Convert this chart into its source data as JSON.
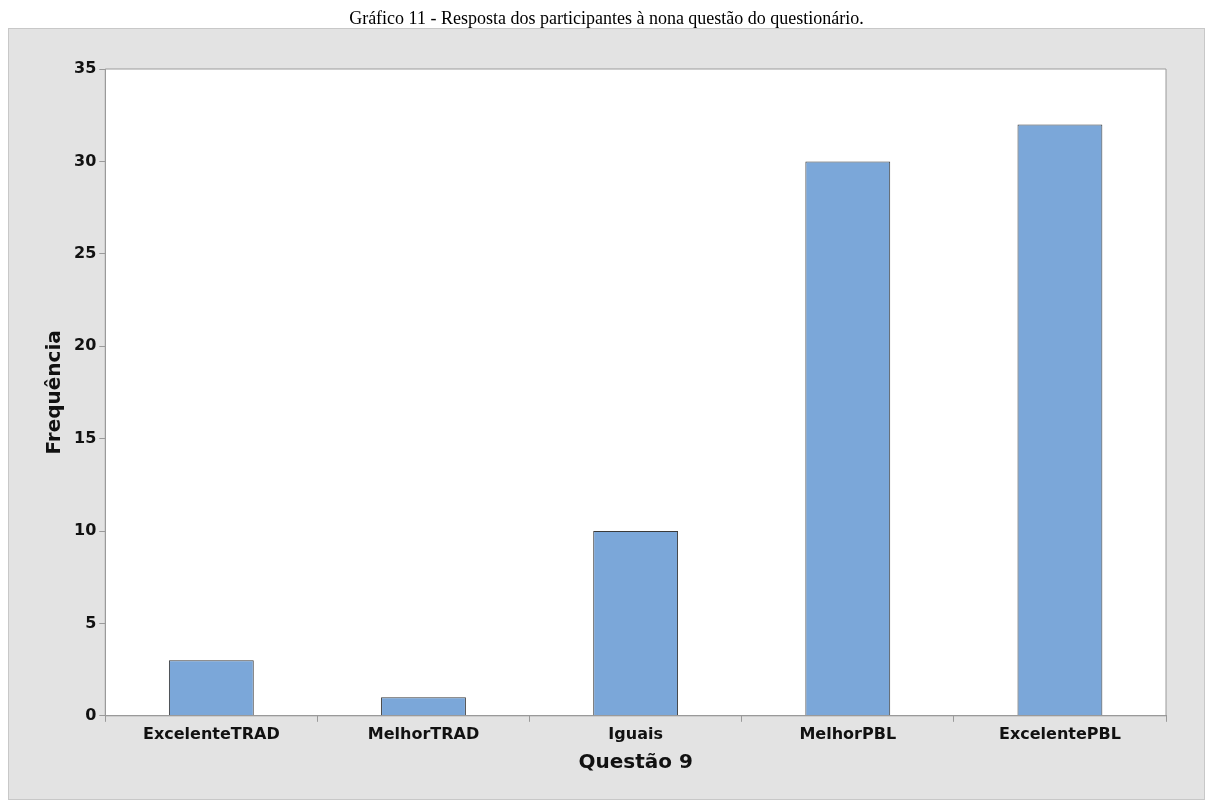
{
  "chart_data": {
    "type": "bar",
    "title": "Gráfico 11 - Resposta dos participantes à nona questão do questionário.",
    "xlabel": "Questão 9",
    "ylabel": "Frequência",
    "categories": [
      "ExcelenteTRAD",
      "MelhorTRAD",
      "Iguais",
      "MelhorPBL",
      "ExcelentePBL"
    ],
    "values": [
      3,
      1,
      10,
      30,
      32
    ],
    "color": "#7ba7d9",
    "ylim": [
      0,
      35
    ],
    "yticks": [
      0,
      5,
      10,
      15,
      20,
      25,
      30,
      35
    ],
    "grid": false,
    "legend": false
  }
}
